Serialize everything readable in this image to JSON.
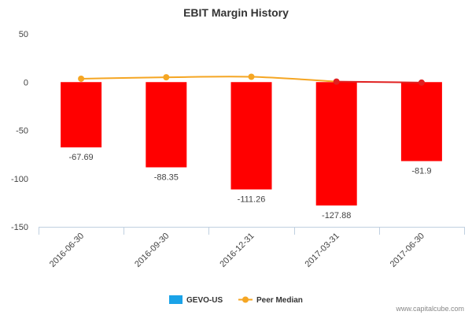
{
  "chart_data": {
    "type": "bar",
    "title": "EBIT Margin History",
    "categories": [
      "2016-06-30",
      "2016-09-30",
      "2016-12-31",
      "2017-03-31",
      "2017-06-30"
    ],
    "series": [
      {
        "name": "GEVO-US",
        "type": "bar",
        "values": [
          -67.69,
          -88.35,
          -111.26,
          -127.88,
          -81.9
        ],
        "bar_color": "#ff0000",
        "legend_color": "#1aa3e8"
      },
      {
        "name": "Peer Median",
        "type": "line",
        "values": [
          3.5,
          5.0,
          5.5,
          0.5,
          -0.5
        ],
        "color": "#f5a623",
        "recent_color": "#e02020"
      }
    ],
    "data_labels": [
      "-67.69",
      "-88.35",
      "-111.26",
      "-127.88",
      "-81.9"
    ],
    "yticks": [
      50,
      0,
      -50,
      -100,
      -150
    ],
    "ylim": [
      -150,
      50
    ],
    "xlabel": "",
    "ylabel": "",
    "grid": false,
    "legend_position": "bottom-center"
  },
  "credit": "www.capitalcube.com"
}
